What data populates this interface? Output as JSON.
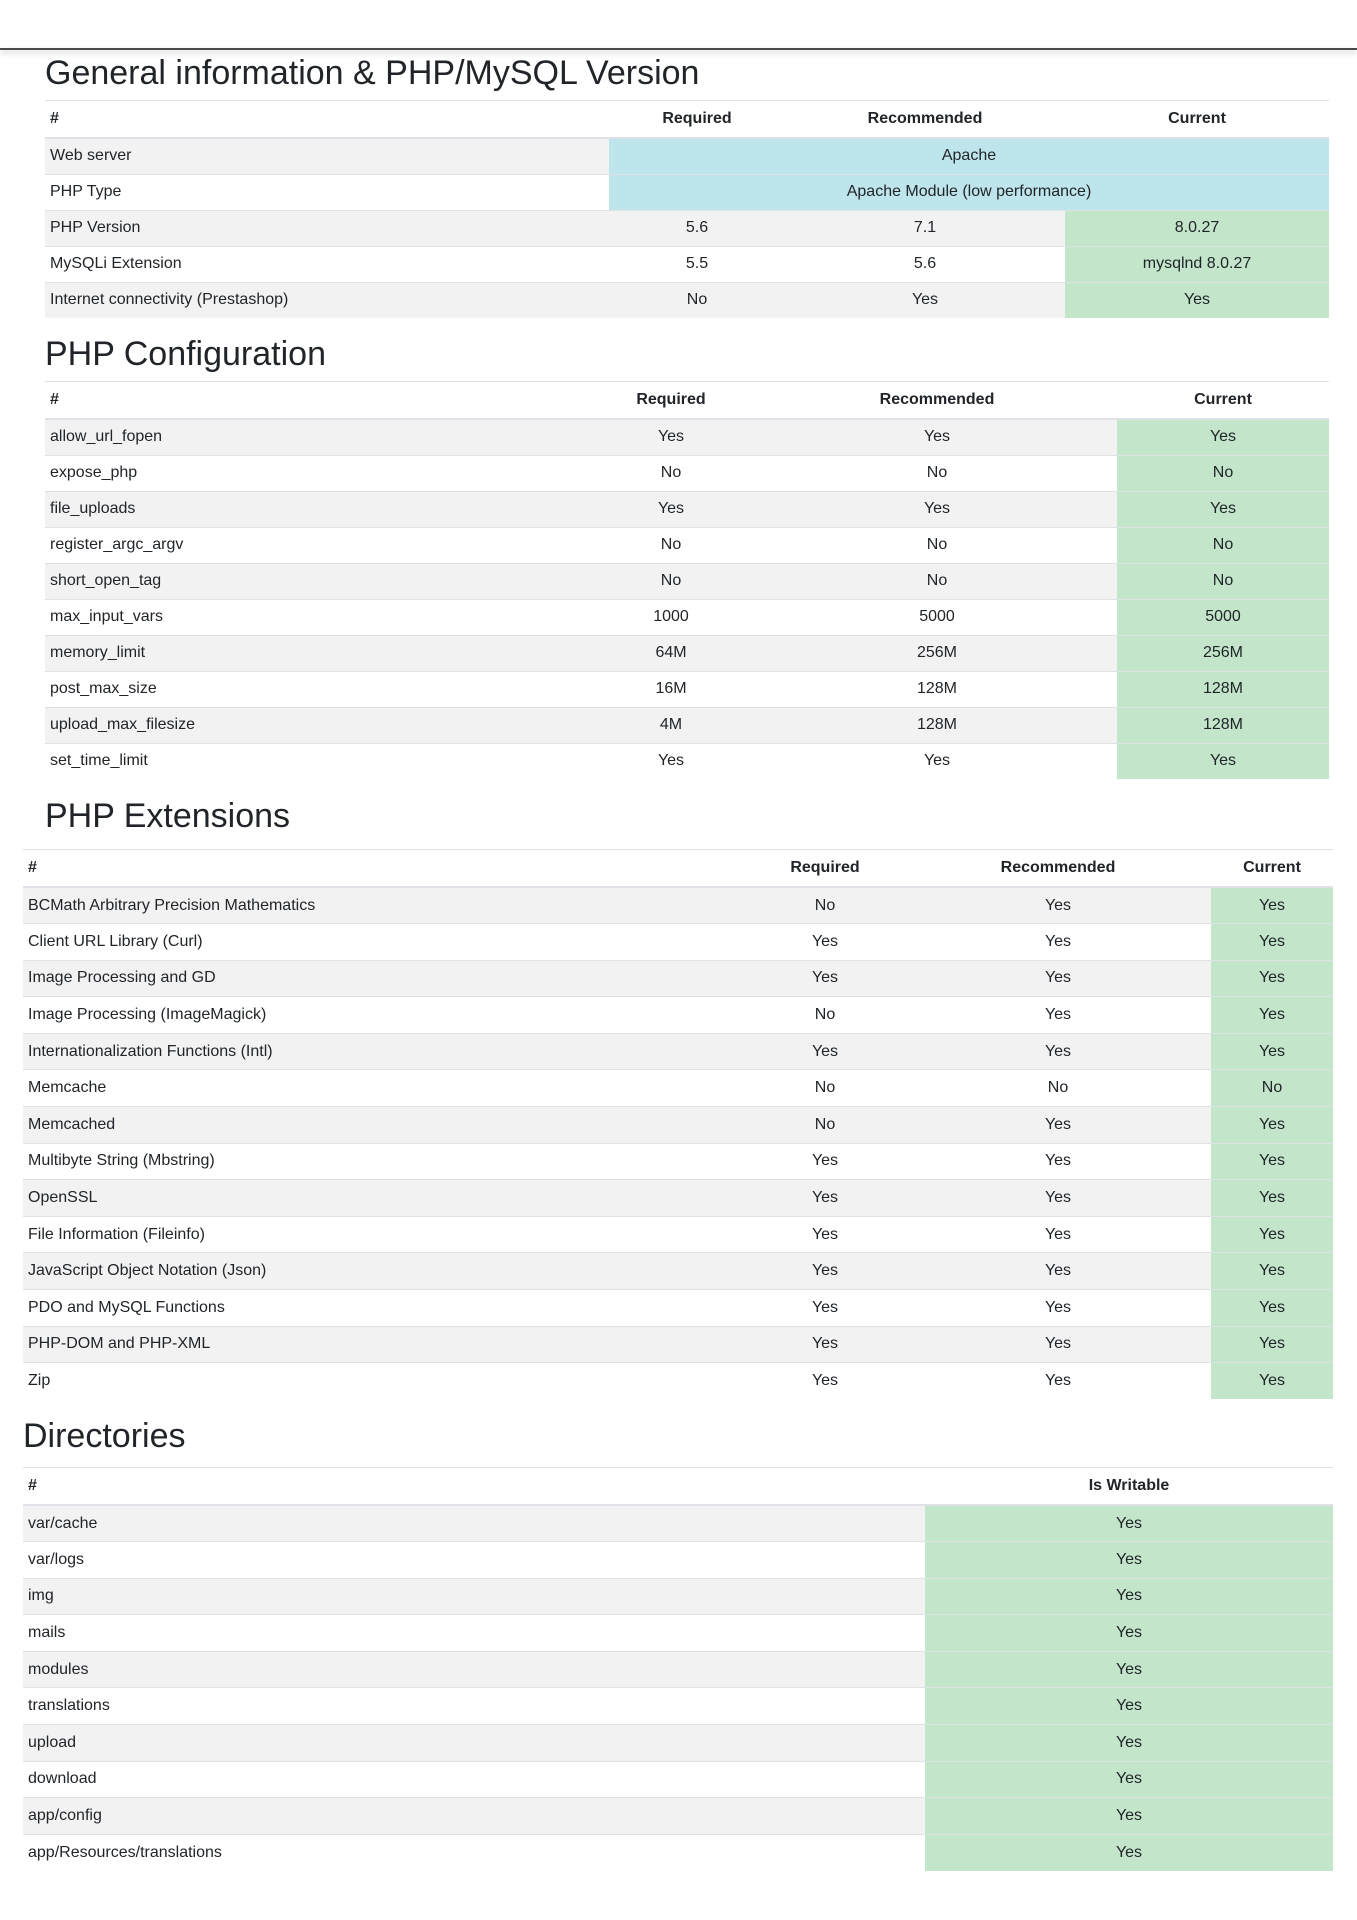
{
  "general": {
    "title": "General information & PHP/MySQL Version",
    "headers": [
      "#",
      "Required",
      "Recommended",
      "Current"
    ],
    "merged_rows": [
      {
        "name": "Web server",
        "value": "Apache"
      },
      {
        "name": "PHP Type",
        "value": "Apache Module (low performance)"
      }
    ],
    "rows": [
      {
        "name": "PHP Version",
        "required": "5.6",
        "recommended": "7.1",
        "current": "8.0.27"
      },
      {
        "name": "MySQLi Extension",
        "required": "5.5",
        "recommended": "5.6",
        "current": "mysqlnd 8.0.27"
      },
      {
        "name": "Internet connectivity (Prestashop)",
        "required": "No",
        "recommended": "Yes",
        "current": "Yes"
      }
    ]
  },
  "php_config": {
    "title": "PHP Configuration",
    "headers": [
      "#",
      "Required",
      "Recommended",
      "Current"
    ],
    "rows": [
      {
        "name": "allow_url_fopen",
        "required": "Yes",
        "recommended": "Yes",
        "current": "Yes"
      },
      {
        "name": "expose_php",
        "required": "No",
        "recommended": "No",
        "current": "No"
      },
      {
        "name": "file_uploads",
        "required": "Yes",
        "recommended": "Yes",
        "current": "Yes"
      },
      {
        "name": "register_argc_argv",
        "required": "No",
        "recommended": "No",
        "current": "No"
      },
      {
        "name": "short_open_tag",
        "required": "No",
        "recommended": "No",
        "current": "No"
      },
      {
        "name": "max_input_vars",
        "required": "1000",
        "recommended": "5000",
        "current": "5000"
      },
      {
        "name": "memory_limit",
        "required": "64M",
        "recommended": "256M",
        "current": "256M"
      },
      {
        "name": "post_max_size",
        "required": "16M",
        "recommended": "128M",
        "current": "128M"
      },
      {
        "name": "upload_max_filesize",
        "required": "4M",
        "recommended": "128M",
        "current": "128M"
      },
      {
        "name": "set_time_limit",
        "required": "Yes",
        "recommended": "Yes",
        "current": "Yes"
      }
    ]
  },
  "php_extensions": {
    "title": "PHP Extensions",
    "headers": [
      "#",
      "Required",
      "Recommended",
      "Current"
    ],
    "rows": [
      {
        "name": "BCMath Arbitrary Precision Mathematics",
        "required": "No",
        "recommended": "Yes",
        "current": "Yes"
      },
      {
        "name": "Client URL Library (Curl)",
        "required": "Yes",
        "recommended": "Yes",
        "current": "Yes"
      },
      {
        "name": "Image Processing and GD",
        "required": "Yes",
        "recommended": "Yes",
        "current": "Yes"
      },
      {
        "name": "Image Processing (ImageMagick)",
        "required": "No",
        "recommended": "Yes",
        "current": "Yes"
      },
      {
        "name": "Internationalization Functions (Intl)",
        "required": "Yes",
        "recommended": "Yes",
        "current": "Yes"
      },
      {
        "name": "Memcache",
        "required": "No",
        "recommended": "No",
        "current": "No"
      },
      {
        "name": "Memcached",
        "required": "No",
        "recommended": "Yes",
        "current": "Yes"
      },
      {
        "name": "Multibyte String (Mbstring)",
        "required": "Yes",
        "recommended": "Yes",
        "current": "Yes"
      },
      {
        "name": "OpenSSL",
        "required": "Yes",
        "recommended": "Yes",
        "current": "Yes"
      },
      {
        "name": "File Information (Fileinfo)",
        "required": "Yes",
        "recommended": "Yes",
        "current": "Yes"
      },
      {
        "name": "JavaScript Object Notation (Json)",
        "required": "Yes",
        "recommended": "Yes",
        "current": "Yes"
      },
      {
        "name": "PDO and MySQL Functions",
        "required": "Yes",
        "recommended": "Yes",
        "current": "Yes"
      },
      {
        "name": "PHP-DOM and PHP-XML",
        "required": "Yes",
        "recommended": "Yes",
        "current": "Yes"
      },
      {
        "name": "Zip",
        "required": "Yes",
        "recommended": "Yes",
        "current": "Yes"
      }
    ]
  },
  "directories": {
    "title": "Directories",
    "headers": [
      "#",
      "Is Writable"
    ],
    "rows": [
      {
        "name": "var/cache",
        "writable": "Yes"
      },
      {
        "name": "var/logs",
        "writable": "Yes"
      },
      {
        "name": "img",
        "writable": "Yes"
      },
      {
        "name": "mails",
        "writable": "Yes"
      },
      {
        "name": "modules",
        "writable": "Yes"
      },
      {
        "name": "translations",
        "writable": "Yes"
      },
      {
        "name": "upload",
        "writable": "Yes"
      },
      {
        "name": "download",
        "writable": "Yes"
      },
      {
        "name": "app/config",
        "writable": "Yes"
      },
      {
        "name": "app/Resources/translations",
        "writable": "Yes"
      }
    ]
  },
  "colors": {
    "info_cell": "#bee5eb",
    "success_cell": "#c3e6cb",
    "stripe": "#f2f2f2"
  }
}
